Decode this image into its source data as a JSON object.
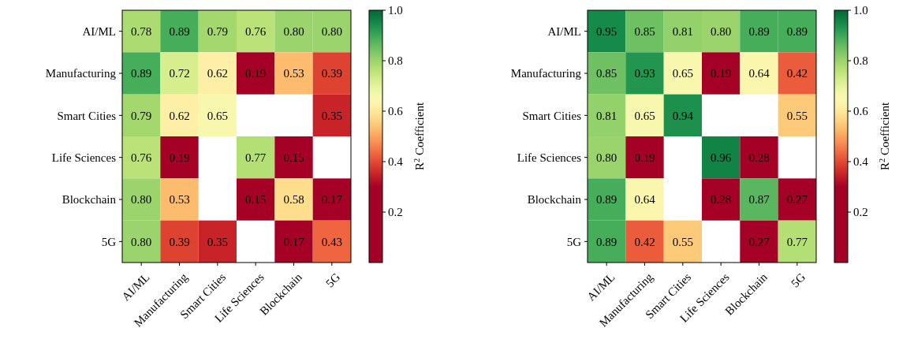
{
  "chart_data": [
    {
      "type": "heatmap",
      "categories": [
        "AI/ML",
        "Manufacturing",
        "Smart Cities",
        "Life Sciences",
        "Blockchain",
        "5G"
      ],
      "y_categories": [
        "AI/ML",
        "Manufacturing",
        "Smart Cities",
        "Life Sciences",
        "Blockchain",
        "5G"
      ],
      "cells": [
        [
          0.78,
          0.89,
          0.79,
          0.76,
          0.8,
          0.8
        ],
        [
          0.89,
          0.72,
          0.62,
          0.19,
          0.53,
          0.39
        ],
        [
          0.79,
          0.62,
          0.65,
          null,
          null,
          0.35
        ],
        [
          0.76,
          0.19,
          null,
          0.77,
          0.15,
          null
        ],
        [
          0.8,
          0.53,
          null,
          0.15,
          0.58,
          0.17
        ],
        [
          0.8,
          0.39,
          0.35,
          null,
          0.17,
          0.43
        ]
      ],
      "cell_labels": [
        [
          "0.78",
          "0.89",
          "0.79",
          "0.76",
          "0.80",
          "0.80"
        ],
        [
          "0.89",
          "0.72",
          "0.62",
          "0.19",
          "0.53",
          "0.39"
        ],
        [
          "0.79",
          "0.62",
          "0.65",
          null,
          null,
          "0.35"
        ],
        [
          "0.76",
          "0.19",
          null,
          "0.77",
          "0.15",
          null
        ],
        [
          "0.80",
          "0.53",
          null,
          "0.15",
          "0.58",
          "0.17"
        ],
        [
          "0.80",
          "0.39",
          "0.35",
          null,
          "0.17",
          "0.43"
        ]
      ],
      "clim": [
        0,
        1
      ],
      "cticks": [
        0.2,
        0.4,
        0.6,
        0.8,
        {
          "value": 1,
          "label": "1.0"
        }
      ],
      "clabel": "R$^{2}$ Coefficient"
    },
    {
      "type": "heatmap",
      "categories": [
        "AI/ML",
        "Manufacturing",
        "Smart Cities",
        "Life Sciences",
        "Blockchain",
        "5G"
      ],
      "y_categories": [
        "AI/ML",
        "Manufacturing",
        "Smart Cities",
        "Life Sciences",
        "Blockchain",
        "5G"
      ],
      "cells": [
        [
          0.95,
          0.85,
          0.81,
          0.8,
          0.89,
          0.89
        ],
        [
          0.85,
          0.93,
          0.65,
          0.19,
          0.64,
          0.42
        ],
        [
          0.81,
          0.65,
          0.94,
          null,
          null,
          0.55
        ],
        [
          0.8,
          0.19,
          null,
          0.96,
          0.28,
          null
        ],
        [
          0.89,
          0.64,
          null,
          0.28,
          0.87,
          0.27
        ],
        [
          0.89,
          0.42,
          0.55,
          null,
          0.27,
          0.77
        ]
      ],
      "cell_labels": [
        [
          "0.95",
          "0.85",
          "0.81",
          "0.80",
          "0.89",
          "0.89"
        ],
        [
          "0.85",
          "0.93",
          "0.65",
          "0.19",
          "0.64",
          "0.42"
        ],
        [
          "0.81",
          "0.65",
          "0.94",
          null,
          null,
          "0.55"
        ],
        [
          "0.80",
          "0.19",
          null,
          "0.96",
          "0.28",
          null
        ],
        [
          "0.89",
          "0.64",
          null,
          "0.28",
          "0.87",
          "0.27"
        ],
        [
          "0.89",
          "0.42",
          "0.55",
          null,
          "0.27",
          "0.77"
        ]
      ],
      "clim": [
        0,
        1
      ],
      "cticks": [
        0.2,
        0.4,
        0.6,
        0.8,
        {
          "value": 1,
          "label": "1.0"
        }
      ],
      "clabel": "R$^{2}$ Coefficient"
    }
  ]
}
